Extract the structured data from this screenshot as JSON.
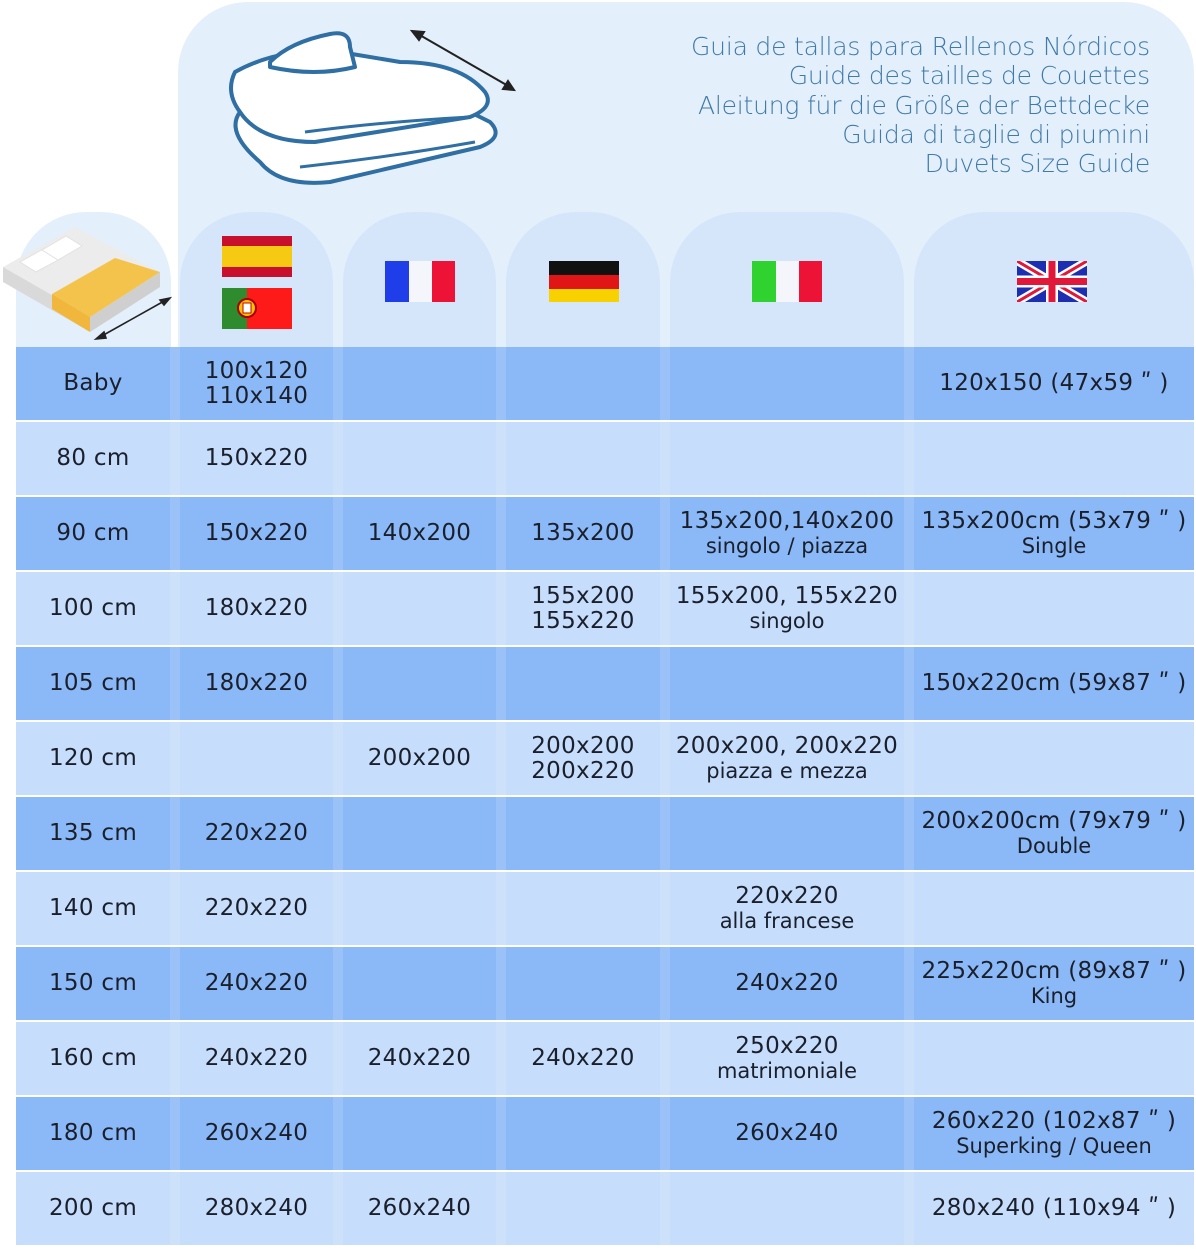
{
  "titles": [
    "Guia de tallas para Rellenos Nórdicos",
    "Guide des tailles de Couettes",
    "Aleitung für die Größe der Bettdecke",
    "Guida di taglie di piumini",
    "Duvets Size Guide"
  ],
  "colors": {
    "title": "#3f7aa8",
    "row_dark": "#8bb9f7",
    "row_light": "#c6ddfb",
    "panel": "#e4effc"
  },
  "header": {
    "icons": [
      "bed-mattress-width-icon",
      "duvet-illustration-icon"
    ],
    "columns": [
      {
        "key": "es_pt",
        "flags": [
          "spain-flag",
          "portugal-flag"
        ]
      },
      {
        "key": "fr",
        "flags": [
          "france-flag"
        ]
      },
      {
        "key": "de",
        "flags": [
          "germany-flag"
        ]
      },
      {
        "key": "it",
        "flags": [
          "italy-flag"
        ]
      },
      {
        "key": "uk",
        "flags": [
          "uk-flag"
        ]
      }
    ]
  },
  "chart_data": {
    "type": "table",
    "columns": [
      "bed",
      "es_pt",
      "fr",
      "de",
      "it",
      "uk"
    ],
    "rows": [
      {
        "bed": "Baby",
        "es_pt": [
          "100x120",
          "110x140"
        ],
        "fr": [],
        "de": [],
        "it": [],
        "uk": [
          "120x150 (47x59 ʺ )"
        ]
      },
      {
        "bed": "80 cm",
        "es_pt": [
          "150x220"
        ],
        "fr": [],
        "de": [],
        "it": [],
        "uk": []
      },
      {
        "bed": "90 cm",
        "es_pt": [
          "150x220"
        ],
        "fr": [
          "140x200"
        ],
        "de": [
          "135x200"
        ],
        "it": [
          "135x200,140x200",
          "singolo / piazza"
        ],
        "uk": [
          "135x200cm (53x79 ʺ )",
          "Single"
        ]
      },
      {
        "bed": "100 cm",
        "es_pt": [
          "180x220"
        ],
        "fr": [],
        "de": [
          "155x200",
          "155x220"
        ],
        "it": [
          "155x200, 155x220",
          "singolo"
        ],
        "uk": []
      },
      {
        "bed": "105 cm",
        "es_pt": [
          "180x220"
        ],
        "fr": [],
        "de": [],
        "it": [],
        "uk": [
          "150x220cm (59x87 ʺ )"
        ]
      },
      {
        "bed": "120 cm",
        "es_pt": [],
        "fr": [
          "200x200"
        ],
        "de": [
          "200x200",
          "200x220"
        ],
        "it": [
          "200x200, 200x220",
          "piazza e mezza"
        ],
        "uk": []
      },
      {
        "bed": "135 cm",
        "es_pt": [
          "220x220"
        ],
        "fr": [],
        "de": [],
        "it": [],
        "uk": [
          "200x200cm (79x79 ʺ )",
          "Double"
        ]
      },
      {
        "bed": "140 cm",
        "es_pt": [
          "220x220"
        ],
        "fr": [],
        "de": [],
        "it": [
          "220x220",
          "alla francese"
        ],
        "uk": []
      },
      {
        "bed": "150 cm",
        "es_pt": [
          "240x220"
        ],
        "fr": [],
        "de": [],
        "it": [
          "240x220"
        ],
        "uk": [
          "225x220cm (89x87 ʺ )",
          "King"
        ]
      },
      {
        "bed": "160 cm",
        "es_pt": [
          "240x220"
        ],
        "fr": [
          "240x220"
        ],
        "de": [
          "240x220"
        ],
        "it": [
          "250x220",
          "matrimoniale"
        ],
        "uk": []
      },
      {
        "bed": "180 cm",
        "es_pt": [
          "260x240"
        ],
        "fr": [],
        "de": [],
        "it": [
          "260x240"
        ],
        "uk": [
          "260x220 (102x87 ʺ )",
          "Superking / Queen"
        ]
      },
      {
        "bed": "200 cm",
        "es_pt": [
          "280x240"
        ],
        "fr": [
          "260x240"
        ],
        "de": [],
        "it": [],
        "uk": [
          "280x240 (110x94 ʺ )"
        ]
      }
    ]
  }
}
